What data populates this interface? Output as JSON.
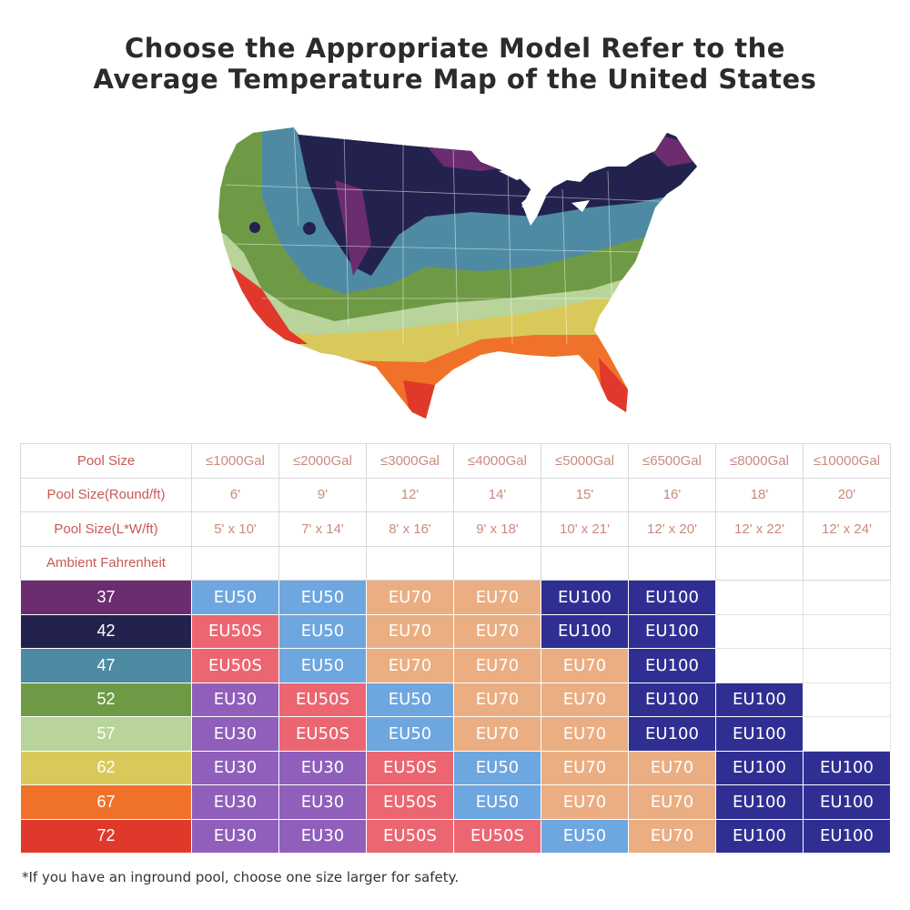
{
  "title": {
    "line1": "Choose the Appropriate Model Refer to the",
    "line2": "Average Temperature Map of the United States"
  },
  "map": {
    "zone_colors": {
      "37": "#6b2d6f",
      "42": "#23224f",
      "47": "#4e8aa3",
      "52": "#6f9a45",
      "57": "#b9d49a",
      "62": "#d9c95a",
      "67": "#f0722a",
      "72": "#e0392c"
    }
  },
  "table": {
    "header_rows": [
      {
        "label": "Pool Size",
        "cells": [
          "≤1000Gal",
          "≤2000Gal",
          "≤3000Gal",
          "≤4000Gal",
          "≤5000Gal",
          "≤6500Gal",
          "≤8000Gal",
          "≤10000Gal"
        ]
      },
      {
        "label": "Pool Size(Round/ft)",
        "cells": [
          "6'",
          "9'",
          "12'",
          "14'",
          "15'",
          "16'",
          "18'",
          "20'"
        ]
      },
      {
        "label": "Pool Size(L*W/ft)",
        "cells": [
          "5' x 10'",
          "7' x 14'",
          "8' x 16'",
          "9' x 18'",
          "10' x 21'",
          "12' x 20'",
          "12' x 22'",
          "12' x 24'"
        ]
      },
      {
        "label": "Ambient Fahrenheit",
        "cells": [
          "",
          "",
          "",
          "",
          "",
          "",
          "",
          ""
        ]
      }
    ],
    "model_colors": {
      "EU30": "#8f5fbb",
      "EU50S": "#ec6672",
      "EU50": "#6ea6e0",
      "EU70": "#ebae82",
      "EU100": "#2f2f93"
    },
    "rows": [
      {
        "temp": "37",
        "color": "#6b2d6f",
        "cells": [
          "EU50",
          "EU50",
          "EU70",
          "EU70",
          "EU100",
          "EU100",
          "",
          ""
        ]
      },
      {
        "temp": "42",
        "color": "#23224f",
        "cells": [
          "EU50S",
          "EU50",
          "EU70",
          "EU70",
          "EU100",
          "EU100",
          "",
          ""
        ]
      },
      {
        "temp": "47",
        "color": "#4e8aa3",
        "cells": [
          "EU50S",
          "EU50",
          "EU70",
          "EU70",
          "EU70",
          "EU100",
          "",
          ""
        ]
      },
      {
        "temp": "52",
        "color": "#6f9a45",
        "cells": [
          "EU30",
          "EU50S",
          "EU50",
          "EU70",
          "EU70",
          "EU100",
          "EU100",
          ""
        ]
      },
      {
        "temp": "57",
        "color": "#b9d49a",
        "cells": [
          "EU30",
          "EU50S",
          "EU50",
          "EU70",
          "EU70",
          "EU100",
          "EU100",
          ""
        ]
      },
      {
        "temp": "62",
        "color": "#d9c95a",
        "cells": [
          "EU30",
          "EU30",
          "EU50S",
          "EU50",
          "EU70",
          "EU70",
          "EU100",
          "EU100"
        ]
      },
      {
        "temp": "67",
        "color": "#f0722a",
        "cells": [
          "EU30",
          "EU30",
          "EU50S",
          "EU50",
          "EU70",
          "EU70",
          "EU100",
          "EU100"
        ]
      },
      {
        "temp": "72",
        "color": "#e0392c",
        "cells": [
          "EU30",
          "EU30",
          "EU50S",
          "EU50S",
          "EU50",
          "EU70",
          "EU100",
          "EU100"
        ]
      }
    ]
  },
  "footnote": "*If you have an inground pool, choose one size larger for safety."
}
